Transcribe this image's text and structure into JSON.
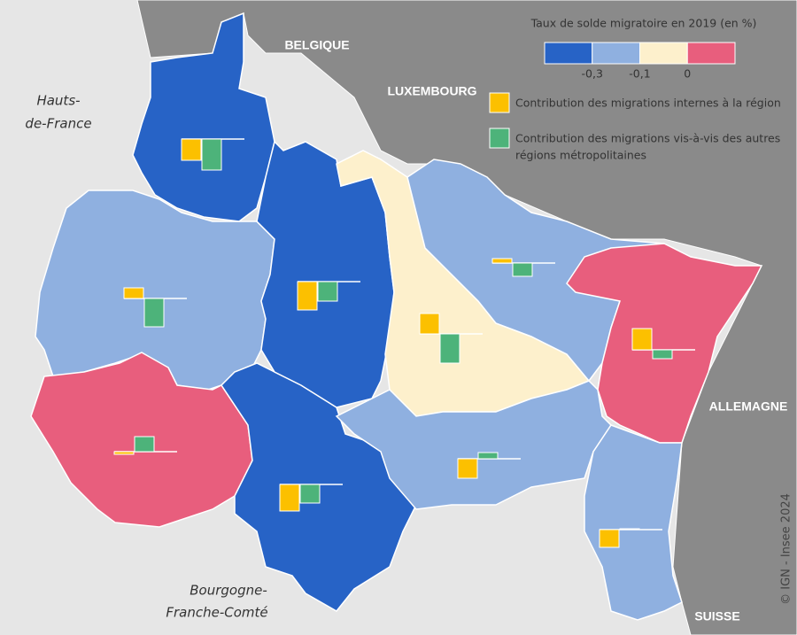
{
  "legend": {
    "title": "Taux de solde migratoire en 2019 (en %)",
    "classes": [
      {
        "color": "#2763c6"
      },
      {
        "color": "#8fb0e0"
      },
      {
        "color": "#fdf0cc"
      },
      {
        "color": "#e85e7d"
      }
    ],
    "thresholds": [
      {
        "value": -0.3,
        "label": "-0,3"
      },
      {
        "value": -0.1,
        "label": "-0,1"
      },
      0
    ],
    "bar_items": [
      {
        "color": "#fcc000",
        "lines": [
          "Contribution des migrations internes à la région"
        ]
      },
      {
        "color": "#4db37a",
        "lines": [
          "Contribution des migrations vis-à-vis des autres",
          "régions métropolitaines"
        ]
      }
    ]
  },
  "map": {
    "departments": [
      {
        "class": 0,
        "internal": -0.24,
        "external": -0.35
      },
      {
        "class": 1,
        "internal": 0.12,
        "external": -0.32
      },
      {
        "class": 3,
        "internal": -0.03,
        "external": 0.17
      },
      {
        "class": 0,
        "internal": -0.3,
        "external": -0.21
      },
      {
        "class": 0,
        "internal": -0.32,
        "external": -0.22
      },
      {
        "class": 2,
        "internal": 0.23,
        "external": -0.33
      },
      {
        "class": 1,
        "internal": 0.05,
        "external": -0.15
      },
      {
        "class": 3,
        "internal": 0.24,
        "external": -0.1
      },
      {
        "class": 1,
        "internal": -0.22,
        "external": 0.07
      },
      {
        "class": 1,
        "internal": -0.2,
        "external": 0.01
      }
    ]
  },
  "labels": {
    "belgique": "BELGIQUE",
    "luxembourg": "LUXEMBOURG",
    "allemagne": "ALLEMAGNE",
    "suisse": "SUISSE",
    "hauts_de_france": [
      "Hauts-",
      "de-France"
    ],
    "bourgogne": [
      "Bourgogne-",
      "Franche-Comté"
    ]
  },
  "credit": "© IGN - Insee 2024"
}
